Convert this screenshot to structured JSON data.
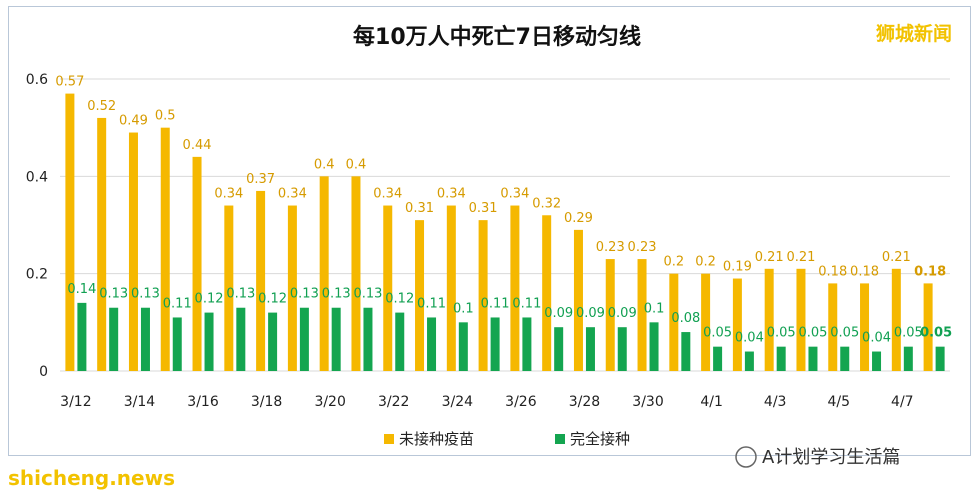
{
  "brand": "狮城新闻",
  "footer_credit": "A计划学习生活篇",
  "watermark": "shicheng.news",
  "colors": {
    "unvaccinated": "#f5b800",
    "vaccinated": "#14a550",
    "grid": "#d9d9d9"
  },
  "chart_data": {
    "type": "bar",
    "title": "每10万人中死亡7日移动匀线",
    "categories": [
      "3/12",
      "3/13",
      "3/14",
      "3/15",
      "3/16",
      "3/17",
      "3/18",
      "3/19",
      "3/20",
      "3/21",
      "3/22",
      "3/23",
      "3/24",
      "3/25",
      "3/26",
      "3/27",
      "3/28",
      "3/29",
      "3/30",
      "3/31",
      "4/1",
      "4/2",
      "4/3",
      "4/4",
      "4/5",
      "4/6",
      "4/7",
      "4/8"
    ],
    "x_tick_labels": [
      "3/12",
      "3/14",
      "3/16",
      "3/18",
      "3/20",
      "3/22",
      "3/24",
      "3/26",
      "3/28",
      "3/30",
      "4/1",
      "4/3",
      "4/5",
      "4/7"
    ],
    "y_ticks": [
      "0",
      "0.2",
      "0.4",
      "0.6"
    ],
    "ylim": [
      0,
      0.6
    ],
    "series": [
      {
        "name": "未接种疫苗",
        "color": "#f5b800",
        "values": [
          0.57,
          0.52,
          0.49,
          0.5,
          0.44,
          0.34,
          0.37,
          0.34,
          0.4,
          0.4,
          0.34,
          0.31,
          0.34,
          0.31,
          0.34,
          0.32,
          0.29,
          0.23,
          0.23,
          0.2,
          0.2,
          0.19,
          0.21,
          0.21,
          0.18,
          0.18,
          0.21,
          0.18
        ]
      },
      {
        "name": "完全接种",
        "color": "#14a550",
        "values": [
          0.14,
          0.13,
          0.13,
          0.11,
          0.12,
          0.13,
          0.12,
          0.13,
          0.13,
          0.13,
          0.12,
          0.11,
          0.1,
          0.11,
          0.11,
          0.09,
          0.09,
          0.09,
          0.1,
          0.08,
          0.05,
          0.04,
          0.05,
          0.05,
          0.05,
          0.04,
          0.05,
          0.05
        ]
      }
    ],
    "legend": [
      "未接种疫苗",
      "完全接种"
    ],
    "grid": true
  }
}
